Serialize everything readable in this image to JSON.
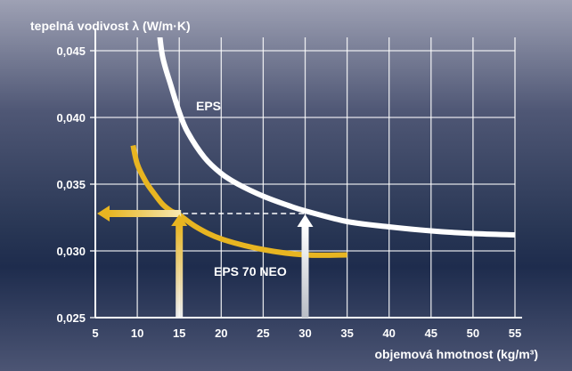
{
  "chart_data": {
    "type": "line",
    "ylabel": "tepelná vodivost λ (W/m·K)",
    "xlabel": "objemová hmotnost (kg/m³)",
    "xlim": [
      5,
      55
    ],
    "ylim": [
      0.025,
      0.046
    ],
    "xticks": [
      5,
      10,
      15,
      20,
      25,
      30,
      35,
      40,
      45,
      50,
      55
    ],
    "yticks": [
      0.025,
      0.03,
      0.035,
      0.04,
      0.045
    ],
    "xtick_labels": [
      "5",
      "10",
      "15",
      "20",
      "25",
      "30",
      "35",
      "40",
      "45",
      "50",
      "55"
    ],
    "ytick_labels": [
      "0,025",
      "0,030",
      "0,035",
      "0,040",
      "0,045"
    ],
    "grid": true,
    "series": [
      {
        "name": "EPS",
        "color": "#ffffff",
        "x": [
          12.5,
          13,
          14,
          15,
          16,
          18,
          20,
          22,
          25,
          28,
          30,
          35,
          40,
          45,
          50,
          55
        ],
        "y": [
          0.0472,
          0.0446,
          0.0424,
          0.0404,
          0.0389,
          0.037,
          0.0358,
          0.035,
          0.0341,
          0.0334,
          0.033,
          0.0322,
          0.0318,
          0.0315,
          0.0313,
          0.0312
        ]
      },
      {
        "name": "EPS 70 NEO",
        "color": "#e8b521",
        "x": [
          9.5,
          10,
          11,
          12,
          13,
          14,
          15,
          17,
          20,
          25,
          30,
          35
        ],
        "y": [
          0.0379,
          0.0365,
          0.0352,
          0.0343,
          0.0335,
          0.033,
          0.0327,
          0.0318,
          0.0309,
          0.0301,
          0.0297,
          0.0297
        ]
      }
    ],
    "annotations": {
      "reference_lambda": 0.0328,
      "neo_density": 15,
      "eps_density": 30
    }
  }
}
